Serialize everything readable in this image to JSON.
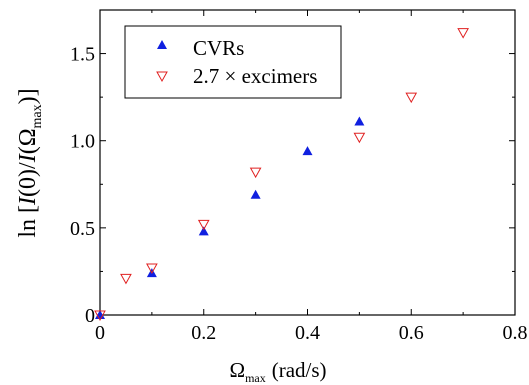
{
  "chart_data": {
    "type": "scatter",
    "xlabel_main": "Ω",
    "xlabel_sub": "max",
    "xlabel_unit": "(rad/s)",
    "ylabel_prefix": "ln [",
    "ylabel_I0": "I",
    "ylabel_mid": "(0)/",
    "ylabel_I": "I",
    "ylabel_paren_open": "(Ω",
    "ylabel_sub": "max",
    "ylabel_suffix": ")]",
    "xlim": [
      0,
      0.8
    ],
    "ylim": [
      0,
      1.75
    ],
    "x_ticks": [
      0,
      0.2,
      0.4,
      0.6,
      0.8
    ],
    "x_tick_labels": [
      "0",
      "0.2",
      "0.4",
      "0.6",
      "0.8"
    ],
    "y_ticks": [
      0,
      0.5,
      1.0,
      1.5
    ],
    "y_tick_labels": [
      "0",
      "0.5",
      "1.0",
      "1.5"
    ],
    "grid": false,
    "legend_position": "top-left",
    "series": [
      {
        "name": "CVRs",
        "marker": "triangle-up-filled",
        "color": "#1020e0",
        "x": [
          0,
          0.1,
          0.2,
          0.3,
          0.4,
          0.5
        ],
        "y": [
          0,
          0.24,
          0.48,
          0.69,
          0.94,
          1.11
        ]
      },
      {
        "name": "2.7 × excimers",
        "marker": "triangle-down-open",
        "color": "#e02020",
        "x": [
          0,
          0.05,
          0.1,
          0.2,
          0.3,
          0.5,
          0.6,
          0.7
        ],
        "y": [
          0,
          0.21,
          0.27,
          0.52,
          0.82,
          1.02,
          1.25,
          1.62
        ]
      }
    ]
  }
}
